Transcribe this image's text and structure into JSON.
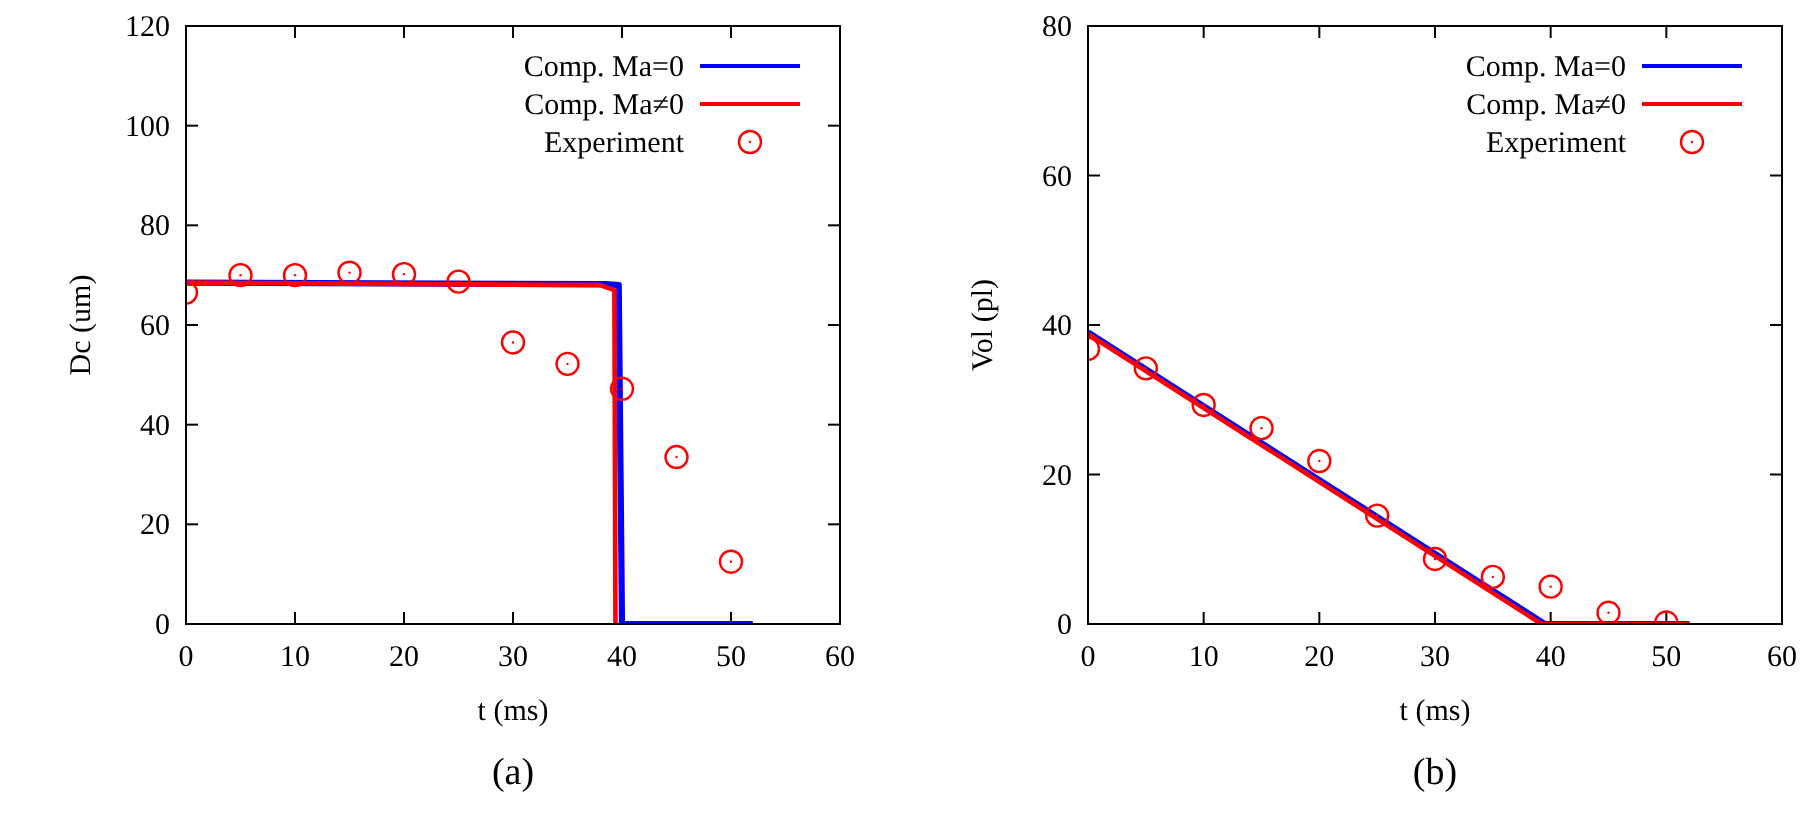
{
  "chart_data": [
    {
      "type": "line",
      "xlabel": "t (ms)",
      "ylabel": "Dc (um)",
      "annotations": [
        "(a)"
      ],
      "xlim": [
        0,
        60
      ],
      "xticks": [
        0,
        10,
        20,
        30,
        40,
        50,
        60
      ],
      "ylim": [
        0,
        120
      ],
      "yticks": [
        0,
        20,
        40,
        60,
        80,
        100,
        120
      ],
      "legend": "top right",
      "grid": false,
      "line_style": "solid",
      "series": [
        {
          "name": "Comp. Ma=0",
          "color": "#0000ff",
          "marker": "none",
          "x": [
            0,
            38.5,
            39.7,
            40,
            52
          ],
          "values": [
            68.5,
            68.2,
            68,
            0,
            0
          ]
        },
        {
          "name": "Comp. Ma≠0",
          "color": "#ff0000",
          "marker": "none",
          "x": [
            0,
            38,
            39.3,
            39.4
          ],
          "values": [
            68.5,
            68,
            67,
            0
          ]
        },
        {
          "name": "Experiment",
          "type": "scatter",
          "color": "#ff0000",
          "marker": "circle",
          "x": [
            0,
            5,
            10,
            15,
            20,
            25,
            30,
            35,
            40,
            45,
            50
          ],
          "values": [
            66.5,
            70,
            70,
            70.5,
            70.2,
            68.7,
            56.5,
            52.2,
            47.2,
            33.5,
            12.5
          ]
        }
      ]
    },
    {
      "type": "line",
      "xlabel": "t (ms)",
      "ylabel": "Vol (pl)",
      "annotations": [
        "(b)"
      ],
      "xlim": [
        0,
        60
      ],
      "xticks": [
        0,
        10,
        20,
        30,
        40,
        50,
        60
      ],
      "ylim": [
        0,
        80
      ],
      "yticks": [
        0,
        20,
        40,
        60,
        80
      ],
      "legend": "top right",
      "grid": false,
      "line_style": "solid",
      "series": [
        {
          "name": "Comp. Ma=0",
          "color": "#0000ff",
          "marker": "none",
          "x": [
            0,
            39.5,
            52
          ],
          "values": [
            39,
            0,
            0
          ]
        },
        {
          "name": "Comp. Ma≠0",
          "color": "#ff0000",
          "marker": "none",
          "x": [
            0,
            39.2,
            52
          ],
          "values": [
            38.8,
            0,
            0
          ]
        },
        {
          "name": "Experiment",
          "type": "scatter",
          "color": "#ff0000",
          "marker": "circle",
          "x": [
            0,
            5,
            10,
            15,
            20,
            25,
            30,
            35,
            40,
            45,
            50
          ],
          "values": [
            36.8,
            34.2,
            29.3,
            26.2,
            21.8,
            14.5,
            8.7,
            6.3,
            5,
            1.5,
            0.2
          ]
        }
      ]
    }
  ]
}
